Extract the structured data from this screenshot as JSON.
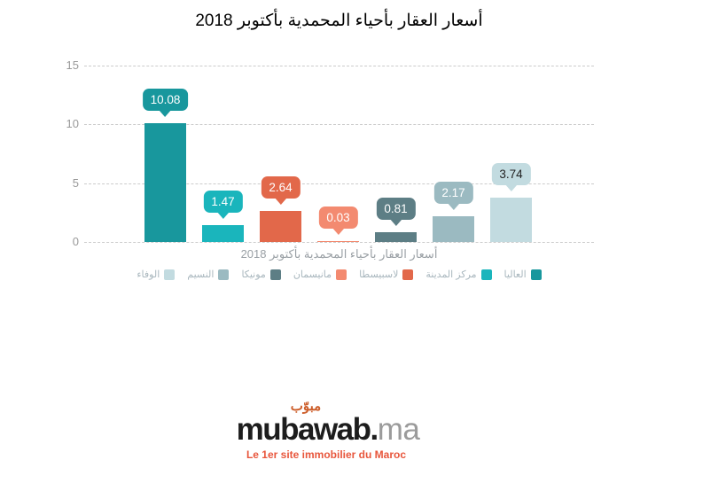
{
  "title": "أسعار العقار بأحياء المحمدية بأكتوبر 2018",
  "chart_data": {
    "type": "bar",
    "title": "أسعار العقار بأحياء المحمدية بأكتوبر 2018",
    "xlabel": "أسعار العقار بأحياء المحمدية بأكتوبر 2018",
    "ylabel": "",
    "ylim": [
      0,
      15
    ],
    "yticks": [
      0,
      5,
      10,
      15
    ],
    "grid": "horizontal-dashed",
    "legend_position": "bottom",
    "direction": "rtl",
    "categories": [
      "العاليا",
      "مركز المدينة",
      "لاسبيسطا",
      "مانيسمان",
      "مونيكا",
      "النسيم",
      "الوفاء"
    ],
    "values": [
      10.08,
      1.47,
      2.64,
      0.03,
      0.81,
      2.17,
      3.74
    ],
    "value_labels": [
      "10.08",
      "1.47",
      "2.64",
      "0.03",
      "0.81",
      "2.17",
      "3.74"
    ],
    "colors": [
      "#18979d",
      "#1ab5bc",
      "#e2684a",
      "#f38a70",
      "#5d7e85",
      "#9bbac1",
      "#c2dbe0"
    ],
    "label_text_colors": [
      "#ffffff",
      "#ffffff",
      "#ffffff",
      "#ffffff",
      "#ffffff",
      "#ffffff",
      "#222222"
    ],
    "axis_text_color": "#999999",
    "gridline_color": "#cccccc"
  },
  "logo": {
    "arabic": "مبوّب",
    "brand": "mubawab.",
    "tld": "ma",
    "tagline": "Le 1er site immobilier du Maroc",
    "arabic_color": "#cd5f2c",
    "tagline_color": "#e8563c"
  }
}
